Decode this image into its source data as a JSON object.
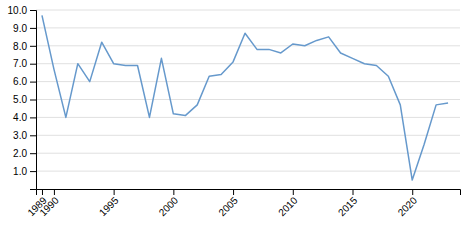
{
  "chart_data": {
    "type": "line",
    "x": [
      1989,
      1990,
      1991,
      1992,
      1993,
      1994,
      1995,
      1996,
      1997,
      1998,
      1999,
      2000,
      2001,
      2002,
      2003,
      2004,
      2005,
      2006,
      2007,
      2008,
      2009,
      2010,
      2011,
      2012,
      2013,
      2014,
      2015,
      2016,
      2017,
      2018,
      2019,
      2020,
      2021,
      2022,
      2023
    ],
    "values": [
      9.7,
      6.7,
      4.0,
      7.0,
      6.0,
      8.2,
      7.0,
      6.9,
      6.9,
      4.0,
      7.3,
      4.2,
      4.1,
      4.7,
      6.3,
      6.4,
      7.1,
      8.7,
      7.8,
      7.8,
      7.6,
      8.1,
      8.0,
      8.3,
      8.5,
      7.6,
      7.3,
      7.0,
      6.9,
      6.3,
      4.7,
      0.5,
      2.5,
      4.7,
      4.8
    ],
    "color": "#6699cc",
    "xlim": [
      1988.5,
      2024.0
    ],
    "xticks": [
      1989,
      1990,
      1995,
      2000,
      2005,
      2010,
      2015,
      2020
    ],
    "ylim": [
      0,
      10.0
    ],
    "yticks": [
      {
        "value": 1.0,
        "label": "1.0"
      },
      {
        "value": 2.0,
        "label": "2.0"
      },
      {
        "value": 3.0,
        "label": "3.0"
      },
      {
        "value": 4.0,
        "label": "4.0"
      },
      {
        "value": 5.0,
        "label": "5.0"
      },
      {
        "value": 6.0,
        "label": "6.0"
      },
      {
        "value": 7.0,
        "label": "7.0"
      },
      {
        "value": 8.0,
        "label": "8.0"
      },
      {
        "value": 9.0,
        "label": "9.0"
      },
      {
        "value": 10.0,
        "label": "10.0"
      }
    ],
    "grid": true
  }
}
